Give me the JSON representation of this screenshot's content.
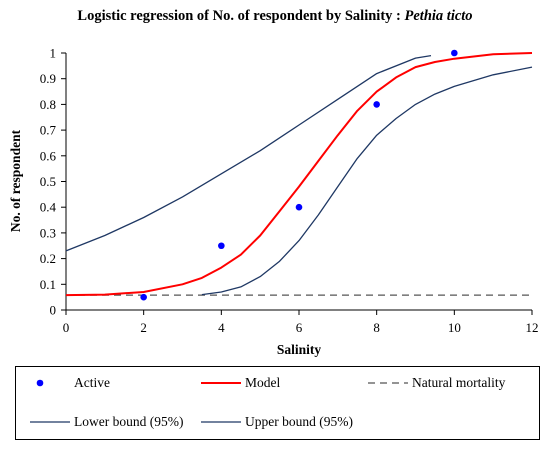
{
  "chart_data": {
    "type": "line",
    "title": "Logistic regression of No. of respondent by Salinity : ",
    "title_italic": "Pethia ticto",
    "xlabel": "Salinity",
    "ylabel": "No. of respondent",
    "xlim": [
      0,
      12
    ],
    "ylim": [
      0,
      1
    ],
    "x_ticks": [
      0,
      2,
      4,
      6,
      8,
      10,
      12
    ],
    "y_ticks": [
      0,
      0.1,
      0.2,
      0.3,
      0.4,
      0.5,
      0.6,
      0.7,
      0.8,
      0.9,
      1
    ],
    "grid": false,
    "legend_position": "bottom",
    "series": [
      {
        "name": "Active",
        "kind": "scatter",
        "color": "#0000ff",
        "x": [
          2,
          4,
          6,
          8,
          10
        ],
        "y": [
          0.05,
          0.25,
          0.4,
          0.8,
          1.0
        ]
      },
      {
        "name": "Model",
        "kind": "line",
        "color": "#ff0000",
        "x": [
          0,
          1,
          2,
          3,
          3.5,
          4,
          4.5,
          5,
          5.5,
          6,
          6.5,
          7,
          7.5,
          8,
          8.5,
          9,
          9.5,
          10,
          11,
          12
        ],
        "y": [
          0.058,
          0.06,
          0.07,
          0.1,
          0.125,
          0.165,
          0.215,
          0.29,
          0.385,
          0.48,
          0.58,
          0.68,
          0.775,
          0.85,
          0.905,
          0.945,
          0.965,
          0.978,
          0.995,
          1.0
        ]
      },
      {
        "name": "Natural mortality",
        "kind": "line",
        "dash": true,
        "color": "#555555",
        "x": [
          0,
          12
        ],
        "y": [
          0.058,
          0.058
        ]
      },
      {
        "name": "Lower bound (95%)",
        "kind": "line",
        "color": "#1f3864",
        "x": [
          0,
          1,
          2,
          3,
          4,
          5,
          6,
          7,
          8,
          9,
          9.4
        ],
        "y": [
          0.23,
          0.29,
          0.36,
          0.44,
          0.53,
          0.62,
          0.72,
          0.82,
          0.92,
          0.98,
          0.99
        ]
      },
      {
        "name": "Upper bound (95%)",
        "kind": "line",
        "color": "#1f3864",
        "x": [
          3.5,
          4,
          4.5,
          5,
          5.5,
          6,
          6.5,
          7,
          7.5,
          8,
          8.5,
          9,
          9.5,
          10,
          11,
          12
        ],
        "y": [
          0.06,
          0.07,
          0.09,
          0.13,
          0.19,
          0.27,
          0.37,
          0.48,
          0.59,
          0.68,
          0.745,
          0.8,
          0.84,
          0.87,
          0.915,
          0.945
        ]
      }
    ]
  }
}
